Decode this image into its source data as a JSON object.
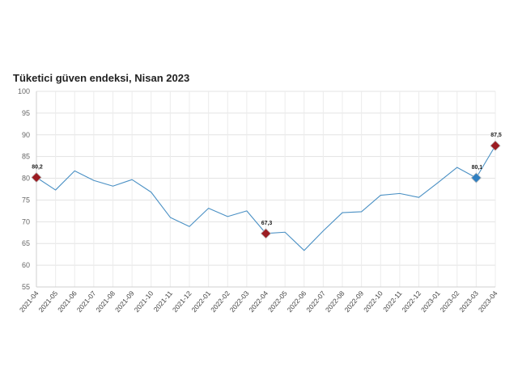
{
  "chart_data": {
    "type": "line",
    "title": "Tüketici güven endeksi, Nisan 2023",
    "xlabel": "",
    "ylabel": "",
    "ylim": [
      55,
      100
    ],
    "yticks": [
      55,
      60,
      65,
      70,
      75,
      80,
      85,
      90,
      95,
      100
    ],
    "grid": true,
    "line_color": "#4a90c4",
    "categories": [
      "2021-04",
      "2021-05",
      "2021-06",
      "2021-07",
      "2021-08",
      "2021-09",
      "2021-10",
      "2021-11",
      "2021-12",
      "2022-01",
      "2022-02",
      "2022-03",
      "2022-04",
      "2022-05",
      "2022-06",
      "2022-07",
      "2022-08",
      "2022-09",
      "2022-10",
      "2022-11",
      "2022-12",
      "2023-01",
      "2023-02",
      "2023-03",
      "2023-04"
    ],
    "series": [
      {
        "values": [
          80.2,
          77.3,
          81.7,
          79.5,
          78.2,
          79.7,
          76.8,
          71.0,
          68.9,
          73.1,
          71.2,
          72.5,
          67.3,
          67.6,
          63.4,
          67.9,
          72.1,
          72.3,
          76.1,
          76.5,
          75.6,
          79.0,
          82.5,
          80.1,
          87.5
        ]
      }
    ],
    "highlights": [
      {
        "category": "2021-04",
        "value": 80.2,
        "label": "80,2",
        "color": "#9b1c22"
      },
      {
        "category": "2022-04",
        "value": 67.3,
        "label": "67,3",
        "color": "#9b1c22"
      },
      {
        "category": "2023-03",
        "value": 80.1,
        "label": "80,1",
        "color": "#2f7fc1"
      },
      {
        "category": "2023-04",
        "value": 87.5,
        "label": "87,5",
        "color": "#9b1c22"
      }
    ]
  }
}
